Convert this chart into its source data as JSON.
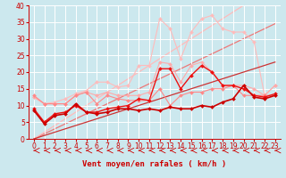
{
  "background_color": "#cce8ee",
  "grid_color": "#ffffff",
  "xlabel": "Vent moyen/en rafales ( km/h )",
  "xlim": [
    -0.5,
    23.5
  ],
  "ylim": [
    0,
    40
  ],
  "yticks": [
    0,
    5,
    10,
    15,
    20,
    25,
    30,
    35,
    40
  ],
  "xticks": [
    0,
    1,
    2,
    3,
    4,
    5,
    6,
    7,
    8,
    9,
    10,
    11,
    12,
    13,
    14,
    15,
    16,
    17,
    18,
    19,
    20,
    21,
    22,
    23
  ],
  "lines": [
    {
      "x": [
        0,
        1,
        2,
        3,
        4,
        5,
        6,
        7,
        8,
        9,
        10,
        11,
        12,
        13,
        14,
        15,
        16,
        17,
        18,
        19,
        20,
        21,
        22,
        23
      ],
      "y": [
        12.5,
        10.5,
        10.5,
        10.5,
        13,
        14,
        13,
        14,
        13,
        13,
        13,
        14,
        23,
        22.5,
        17,
        22,
        23,
        20,
        16,
        16,
        16,
        15,
        13,
        16
      ],
      "color": "#ffaaaa",
      "marker": "D",
      "markersize": 2.0,
      "linewidth": 0.8,
      "zorder": 3
    },
    {
      "x": [
        0,
        1,
        2,
        3,
        4,
        5,
        6,
        7,
        8,
        9,
        10,
        11,
        12,
        13,
        14,
        15,
        16,
        17,
        18,
        19,
        20,
        21,
        22,
        23
      ],
      "y": [
        12.5,
        10.5,
        11,
        12,
        13.5,
        14.5,
        17,
        17,
        15.5,
        16,
        22,
        22,
        36,
        33,
        24,
        32,
        36,
        37,
        33,
        32,
        32,
        29,
        13,
        16
      ],
      "color": "#ffbbbb",
      "marker": "D",
      "markersize": 2.0,
      "linewidth": 0.8,
      "zorder": 2
    },
    {
      "x": [
        0,
        1,
        2,
        3,
        4,
        5,
        6,
        7,
        8,
        9,
        10,
        11,
        12,
        13,
        14,
        15,
        16,
        17,
        18,
        19,
        20,
        21,
        22,
        23
      ],
      "y": [
        13,
        10.5,
        10.5,
        10.5,
        13,
        14,
        10.5,
        13,
        12,
        11.5,
        11.5,
        11.5,
        15,
        10,
        13,
        14,
        14,
        15,
        15,
        16,
        13,
        13,
        13,
        13
      ],
      "color": "#ff8888",
      "marker": "D",
      "markersize": 2.0,
      "linewidth": 0.8,
      "zorder": 3
    },
    {
      "x": [
        0,
        1,
        2,
        3,
        4,
        5,
        6,
        7,
        8,
        9,
        10,
        11,
        12,
        13,
        14,
        15,
        16,
        17,
        18,
        19,
        20,
        21,
        22,
        23
      ],
      "y": [
        8.5,
        4.5,
        7,
        7.5,
        10.5,
        8,
        7.5,
        8,
        9,
        9,
        8.5,
        9,
        8.5,
        9.5,
        9,
        9,
        10,
        9.5,
        11,
        12,
        16,
        12.5,
        12,
        13
      ],
      "color": "#cc0000",
      "marker": "D",
      "markersize": 2.0,
      "linewidth": 1.2,
      "zorder": 5
    },
    {
      "x": [
        0,
        1,
        2,
        3,
        4,
        5,
        6,
        7,
        8,
        9,
        10,
        11,
        12,
        13,
        14,
        15,
        16,
        17,
        18,
        19,
        20,
        21,
        22,
        23
      ],
      "y": [
        9,
        5,
        7.5,
        8,
        10,
        8,
        8,
        9,
        9.5,
        10,
        12,
        11.5,
        21,
        21,
        15,
        19,
        22,
        20,
        16,
        16,
        15,
        13,
        12.5,
        13.5
      ],
      "color": "#ee1111",
      "marker": "D",
      "markersize": 2.0,
      "linewidth": 1.0,
      "zorder": 4
    },
    {
      "x": [
        0,
        23
      ],
      "y": [
        0,
        23
      ],
      "color": "#cc3333",
      "marker": null,
      "markersize": 0,
      "linewidth": 0.9,
      "zorder": 2
    },
    {
      "x": [
        0,
        23
      ],
      "y": [
        0,
        34.5
      ],
      "color": "#ee7777",
      "marker": null,
      "markersize": 0,
      "linewidth": 0.9,
      "zorder": 1
    },
    {
      "x": [
        0,
        20
      ],
      "y": [
        0,
        40
      ],
      "color": "#ffbbbb",
      "marker": null,
      "markersize": 0,
      "linewidth": 0.9,
      "zorder": 1
    }
  ],
  "xlabel_fontsize": 6.5,
  "tick_fontsize": 5.5,
  "label_color": "#cc0000",
  "spine_color": "#cc0000"
}
